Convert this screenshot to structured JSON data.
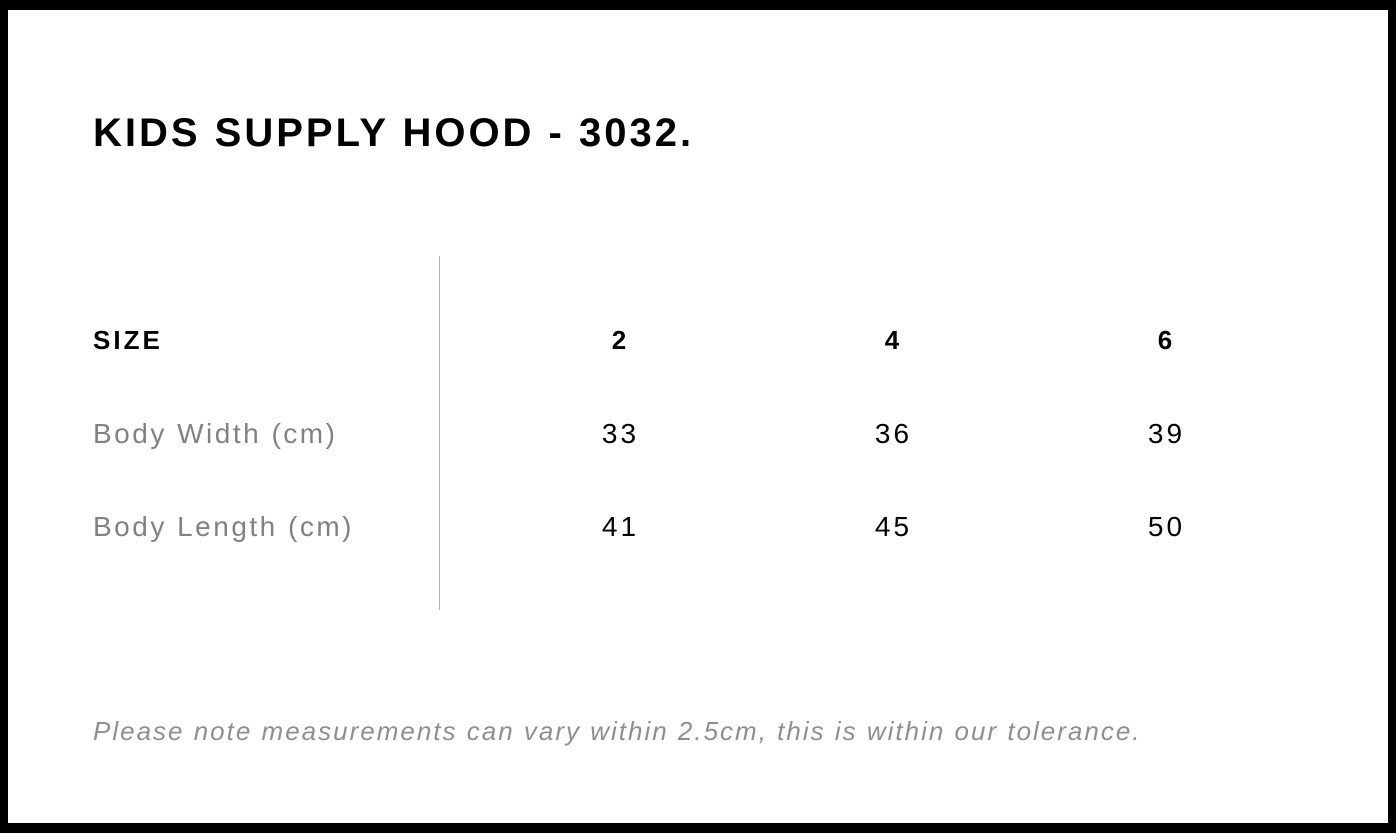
{
  "page": {
    "title": "KIDS SUPPLY HOOD - 3032.",
    "note": "Please note measurements can vary within 2.5cm, this is within our tolerance."
  },
  "size_table": {
    "header": {
      "label": "SIZE",
      "sizes": [
        "2",
        "4",
        "6"
      ]
    },
    "rows": [
      {
        "label": "Body Width (cm)",
        "values": [
          "33",
          "36",
          "39"
        ]
      },
      {
        "label": "Body Length (cm)",
        "values": [
          "41",
          "45",
          "50"
        ]
      }
    ]
  },
  "colors": {
    "text_black": "#000000",
    "label_gray": "#828282",
    "note_gray": "#8f8f8f",
    "divider_gray": "#b4b4b4",
    "border_black": "#000000",
    "background": "#ffffff"
  }
}
